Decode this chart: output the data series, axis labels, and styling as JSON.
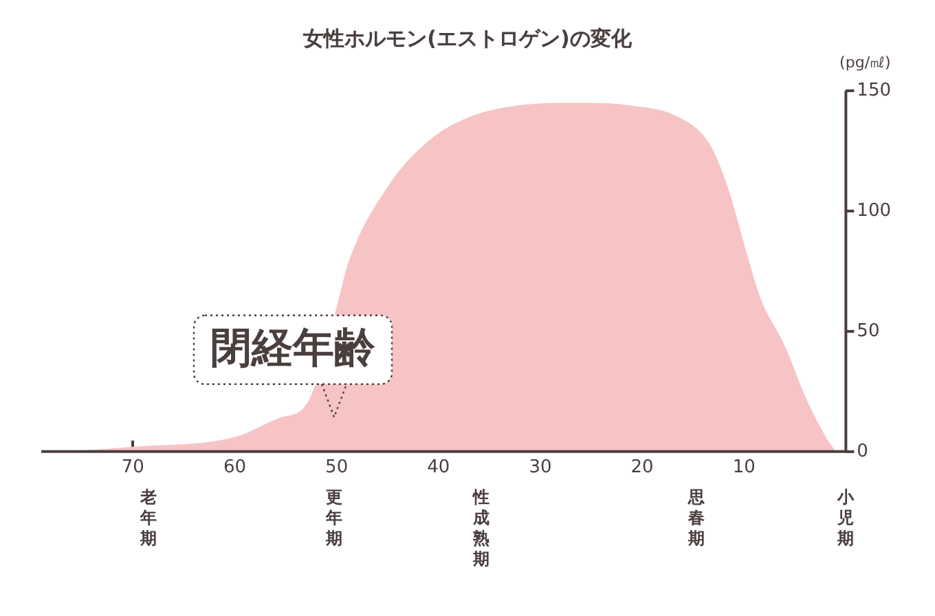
{
  "chart_data": {
    "type": "area",
    "title": "女性ホルモン(エストロゲン)の変化",
    "ylabel": "(pg/㎖)",
    "x": [
      79,
      75,
      70,
      60,
      55.6,
      52.9,
      50,
      48.9,
      45,
      41.3,
      37.6,
      32,
      26.4,
      21.4,
      16.4,
      13.4,
      11.6,
      9.7,
      8.4,
      6,
      4,
      2.1,
      1
    ],
    "series": [
      {
        "color": "#f7c4c6",
        "values": [
          0,
          0.5,
          2,
          6,
          14,
          20,
          60,
          78,
          110,
          128,
          138,
          144,
          145,
          144,
          139,
          128,
          110,
          82,
          64,
          44,
          23,
          7,
          0
        ]
      }
    ],
    "xlim": [
      79,
      0
    ],
    "xticks": [
      70,
      60,
      50,
      40,
      30,
      20,
      10
    ],
    "ylim": [
      0,
      150
    ],
    "yticks": [
      0,
      50,
      100,
      150
    ],
    "grid": false,
    "legend": false,
    "annotations": [
      "閉経年齢",
      "老年期",
      "更年期",
      "性成熟期",
      "思春期",
      "小児期"
    ]
  }
}
